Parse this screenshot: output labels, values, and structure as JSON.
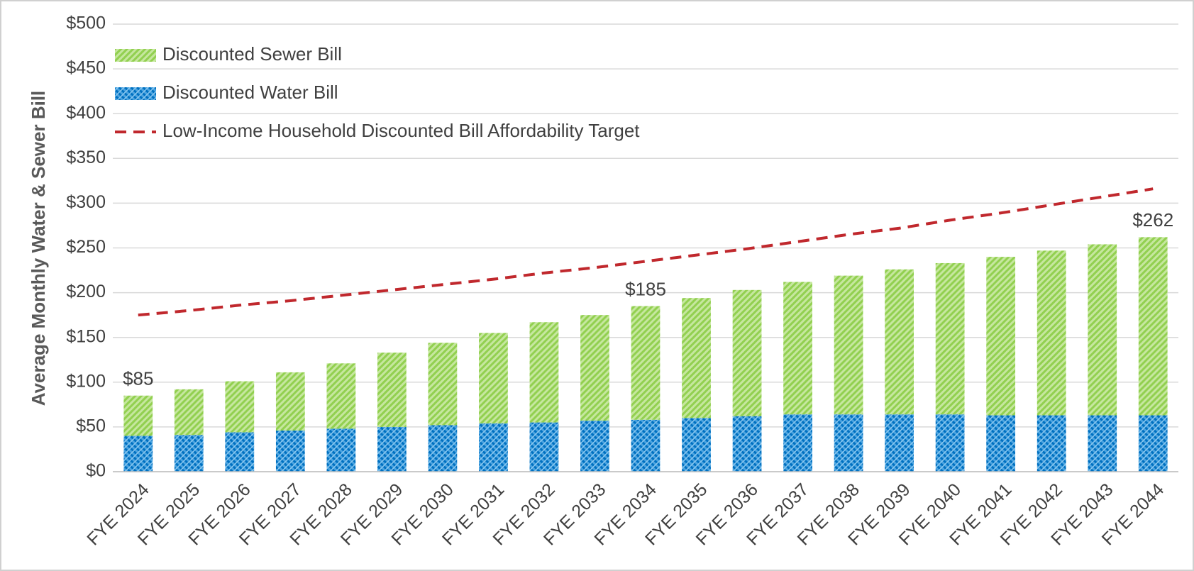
{
  "chart_data": {
    "type": "stacked_bar_line",
    "y_label": "Average Monthly Water & Sewer Bill",
    "categories": [
      "FYE 2024",
      "FYE 2025",
      "FYE 2026",
      "FYE 2027",
      "FYE 2028",
      "FYE 2029",
      "FYE 2030",
      "FYE 2031",
      "FYE 2032",
      "FYE 2033",
      "FYE 2034",
      "FYE 2035",
      "FYE 2036",
      "FYE 2037",
      "FYE 2038",
      "FYE 2039",
      "FYE 2040",
      "FYE 2041",
      "FYE 2042",
      "FYE 2043",
      "FYE 2044"
    ],
    "series": [
      {
        "name": "Discounted Water Bill",
        "kind": "bar",
        "color": "#0070c0",
        "values": [
          40,
          41,
          44,
          46,
          48,
          50,
          52,
          54,
          55,
          57,
          58,
          60,
          62,
          64,
          64,
          64,
          64,
          63,
          63,
          63,
          63
        ]
      },
      {
        "name": "Discounted Sewer Bill",
        "kind": "bar",
        "color": "#92d050",
        "values": [
          45,
          51,
          57,
          65,
          73,
          83,
          92,
          101,
          112,
          118,
          127,
          134,
          141,
          148,
          155,
          162,
          169,
          177,
          184,
          191,
          199
        ]
      },
      {
        "name": "Low-Income Household Discounted Bill Affordability Target",
        "kind": "line",
        "color": "#c0282d",
        "values": [
          175,
          180,
          186,
          191,
          197,
          203,
          209,
          215,
          222,
          228,
          235,
          242,
          249,
          257,
          265,
          272,
          281,
          289,
          298,
          307,
          316
        ]
      }
    ],
    "annotations": [
      {
        "text": "$85",
        "value": 85,
        "index": 0
      },
      {
        "text": "$185",
        "value": 185,
        "index": 10
      },
      {
        "text": "$262",
        "value": 262,
        "index": 20
      }
    ],
    "ylim": [
      0,
      500
    ],
    "yticks": [
      {
        "value": 0,
        "label": "$0"
      },
      {
        "value": 50,
        "label": "$50"
      },
      {
        "value": 100,
        "label": "$100"
      },
      {
        "value": 150,
        "label": "$150"
      },
      {
        "value": 200,
        "label": "$200"
      },
      {
        "value": 250,
        "label": "$250"
      },
      {
        "value": 300,
        "label": "$300"
      },
      {
        "value": 350,
        "label": "$350"
      },
      {
        "value": 400,
        "label": "$400"
      },
      {
        "value": 450,
        "label": "$450"
      },
      {
        "value": 500,
        "label": "$500"
      }
    ],
    "grid": true,
    "legend": "top-left"
  }
}
